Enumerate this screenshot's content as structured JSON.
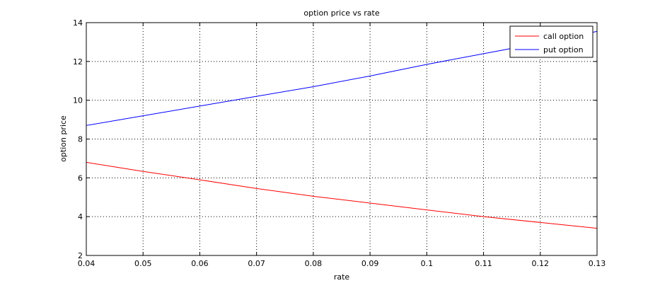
{
  "chart_data": {
    "type": "line",
    "title": "option price vs rate",
    "xlabel": "rate",
    "ylabel": "option price",
    "xlim": [
      0.04,
      0.13
    ],
    "ylim": [
      2,
      14
    ],
    "xticks": [
      0.04,
      0.05,
      0.06,
      0.07,
      0.08,
      0.09,
      0.1,
      0.11,
      0.12,
      0.13
    ],
    "xtick_labels": [
      "0.04",
      "0.05",
      "0.06",
      "0.07",
      "0.08",
      "0.09",
      "0.1",
      "0.11",
      "0.12",
      "0.13"
    ],
    "yticks": [
      2,
      4,
      6,
      8,
      10,
      12,
      14
    ],
    "ytick_labels": [
      "2",
      "4",
      "6",
      "8",
      "10",
      "12",
      "14"
    ],
    "grid": true,
    "legend_position": "top-right",
    "x": [
      0.04,
      0.05,
      0.06,
      0.07,
      0.08,
      0.09,
      0.1,
      0.11,
      0.12,
      0.13
    ],
    "series": [
      {
        "name": "call option",
        "color": "#ff0000",
        "values": [
          6.8,
          6.33,
          5.9,
          5.45,
          5.05,
          4.7,
          4.35,
          4.0,
          3.7,
          3.4
        ]
      },
      {
        "name": "put option",
        "color": "#0000ff",
        "values": [
          8.7,
          9.2,
          9.7,
          10.2,
          10.7,
          11.25,
          11.85,
          12.4,
          12.95,
          13.55
        ]
      }
    ]
  }
}
